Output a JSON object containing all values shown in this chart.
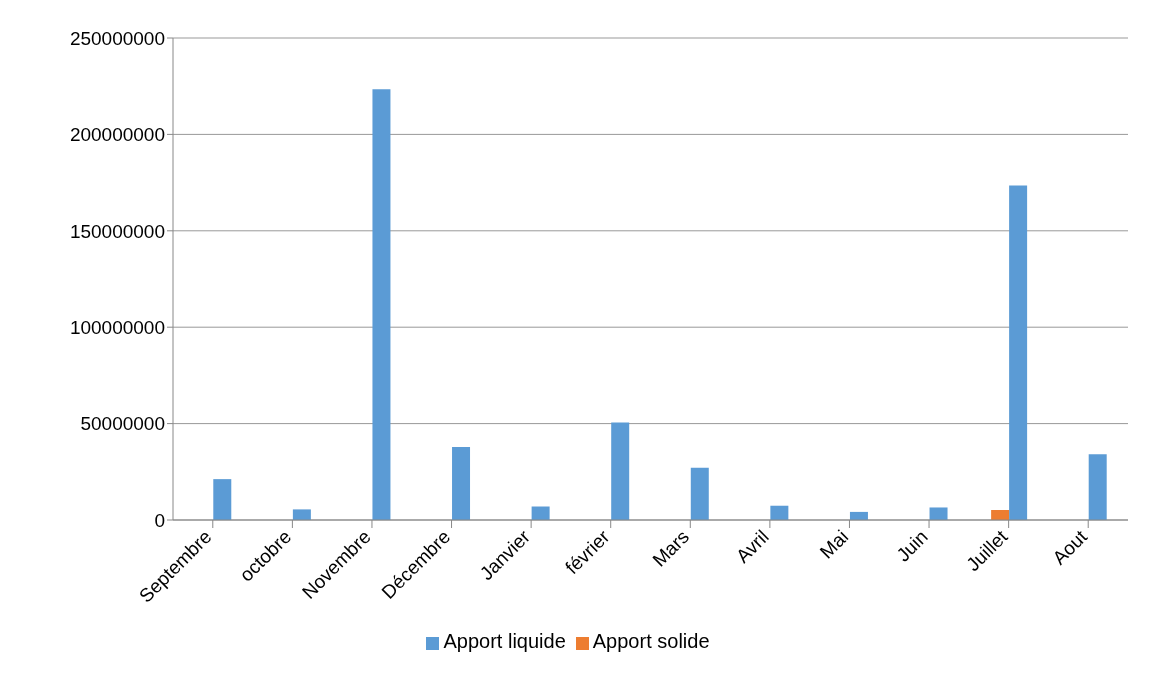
{
  "chart_data": {
    "type": "bar",
    "categories": [
      "Septembre",
      "octobre",
      "Novembre",
      "Décembre",
      "Janvier",
      "février",
      "Mars",
      "Avril",
      "Mai",
      "Juin",
      "Juillet",
      "Aout"
    ],
    "series": [
      {
        "name": "Apport solide",
        "color": "#ed7d31",
        "values": [
          null,
          0,
          null,
          0,
          0,
          null,
          0,
          0,
          0,
          0,
          5200000,
          0
        ]
      },
      {
        "name": "Apport liquide",
        "color": "#5b9bd5",
        "values": [
          21200000,
          5500000,
          223400000,
          37800000,
          7000000,
          50600000,
          27100000,
          7400000,
          4200000,
          6500000,
          173500000,
          34100000
        ]
      }
    ],
    "ylim": [
      0,
      250000000
    ],
    "yticks": [
      0,
      50000000,
      100000000,
      150000000,
      200000000,
      250000000
    ],
    "grid": "y",
    "legend": "bottom"
  }
}
